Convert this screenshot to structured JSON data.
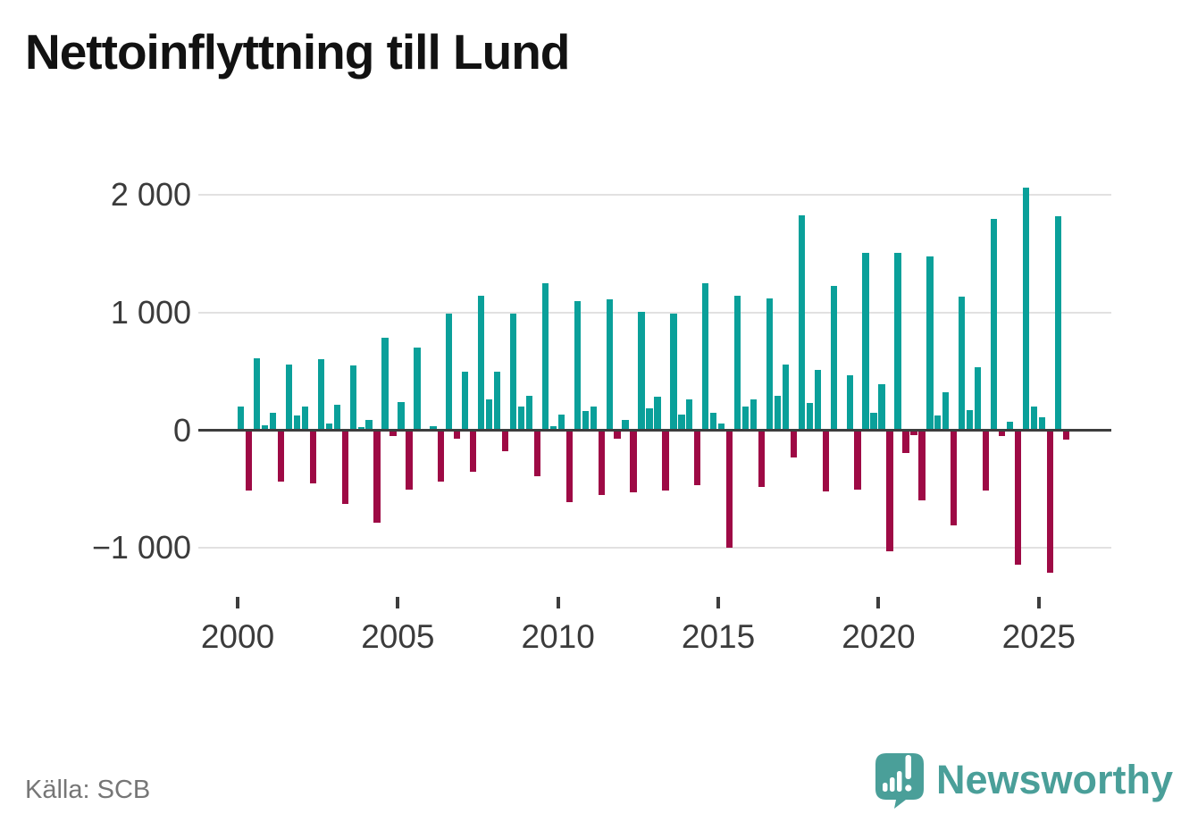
{
  "title": "Nettoinflyttning till Lund",
  "footer": {
    "source": "Källa: SCB",
    "brand": "Newsworthy"
  },
  "chart_data": {
    "type": "bar",
    "title": "Nettoinflyttning till Lund",
    "xlabel": "",
    "ylabel": "",
    "x_unit": "quarter",
    "note": "Quarterly net migration bars, four per year 2000–2025; positive quarters teal, negative quarters crimson",
    "xticks": [
      2000,
      2005,
      2010,
      2015,
      2020,
      2025
    ],
    "yticks": [
      {
        "label": "2 000",
        "value": 2000
      },
      {
        "label": "1 000",
        "value": 1000
      },
      {
        "label": "0",
        "value": 0
      },
      {
        "label": "−1 000",
        "value": -1000
      }
    ],
    "ylim": [
      -1350,
      2200
    ],
    "grid": true,
    "legend": false,
    "colors": {
      "positive": "#0aa09a",
      "negative": "#9e0a45",
      "axis": "#3d3d3d",
      "gridline": "#e2e1e1"
    },
    "series": [
      {
        "year": 2000,
        "values": [
          205,
          -510,
          610,
          45
        ]
      },
      {
        "year": 2001,
        "values": [
          150,
          -435,
          555,
          125
        ]
      },
      {
        "year": 2002,
        "values": [
          200,
          -455,
          605,
          60
        ]
      },
      {
        "year": 2003,
        "values": [
          220,
          -625,
          550,
          30
        ]
      },
      {
        "year": 2004,
        "values": [
          85,
          -790,
          790,
          -50
        ]
      },
      {
        "year": 2005,
        "values": [
          240,
          -505,
          705,
          0
        ]
      },
      {
        "year": 2006,
        "values": [
          35,
          -435,
          990,
          -70
        ]
      },
      {
        "year": 2007,
        "values": [
          495,
          -350,
          1140,
          265
        ]
      },
      {
        "year": 2008,
        "values": [
          495,
          -180,
          990,
          205
        ]
      },
      {
        "year": 2009,
        "values": [
          290,
          -390,
          1250,
          35
        ]
      },
      {
        "year": 2010,
        "values": [
          130,
          -615,
          1095,
          165
        ]
      },
      {
        "year": 2011,
        "values": [
          200,
          -550,
          1110,
          -70
        ]
      },
      {
        "year": 2012,
        "values": [
          85,
          -530,
          1010,
          185
        ]
      },
      {
        "year": 2013,
        "values": [
          285,
          -510,
          990,
          130
        ]
      },
      {
        "year": 2014,
        "values": [
          260,
          -465,
          1250,
          145
        ]
      },
      {
        "year": 2015,
        "values": [
          55,
          -1000,
          1140,
          200
        ]
      },
      {
        "year": 2016,
        "values": [
          265,
          -485,
          1120,
          295
        ]
      },
      {
        "year": 2017,
        "values": [
          560,
          -230,
          1830,
          230
        ]
      },
      {
        "year": 2018,
        "values": [
          515,
          -520,
          1225,
          0
        ]
      },
      {
        "year": 2019,
        "values": [
          470,
          -505,
          1510,
          145
        ]
      },
      {
        "year": 2020,
        "values": [
          390,
          -1030,
          1505,
          -195
        ]
      },
      {
        "year": 2021,
        "values": [
          -40,
          -595,
          1475,
          125
        ]
      },
      {
        "year": 2022,
        "values": [
          325,
          -810,
          1135,
          170
        ]
      },
      {
        "year": 2023,
        "values": [
          535,
          -510,
          1800,
          -50
        ]
      },
      {
        "year": 2024,
        "values": [
          70,
          -1140,
          2060,
          205
        ]
      },
      {
        "year": 2025,
        "values": [
          110,
          -1215,
          1820,
          -80
        ]
      }
    ]
  }
}
